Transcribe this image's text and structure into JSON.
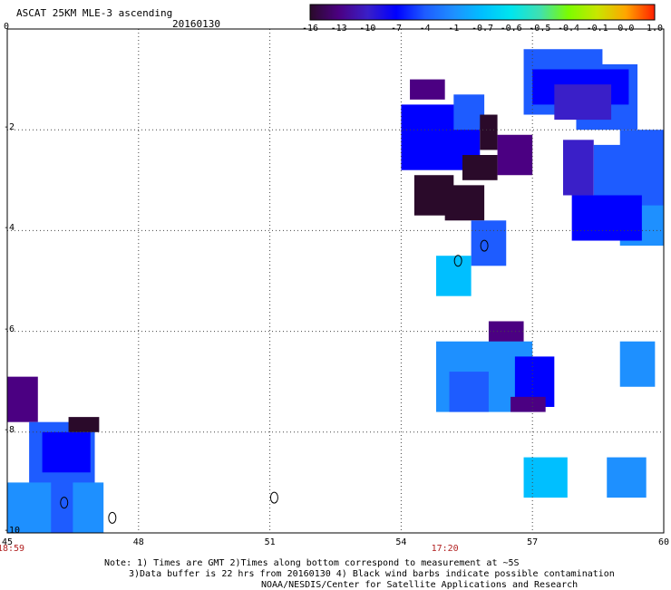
{
  "header": {
    "title": "ASCAT 25KM MLE-3 ascending",
    "date": "20160130"
  },
  "colorbar": {
    "labels": [
      "-16",
      "-13",
      "-10",
      "-7",
      "-4",
      "-1",
      "-0.7",
      "-0.6",
      "-0.5",
      "-0.4",
      "-0.1",
      "0.0",
      "1.0"
    ],
    "colors": [
      "#2a0a2a",
      "#4b0082",
      "#3a1fc8",
      "#0000ff",
      "#1e5cff",
      "#1e90ff",
      "#00bfff",
      "#00e5ee",
      "#40e0b0",
      "#7cfc00",
      "#c8e600",
      "#ffa500",
      "#ff2000"
    ]
  },
  "map": {
    "lon_range": [
      45,
      60
    ],
    "lat_range": [
      -10,
      0
    ],
    "x_ticks": [
      "45",
      "48",
      "51",
      "54",
      "57",
      "60"
    ],
    "y_ticks": [
      "0",
      "-2",
      "-4",
      "-6",
      "-8",
      "-10"
    ],
    "time_labels": [
      {
        "text": "18:59",
        "lon": 45
      },
      {
        "text": "17:20",
        "lon": 55
      }
    ]
  },
  "notes": {
    "line1": "Note: 1) Times are GMT 2)Times along bottom correspond to measurement at ~5S",
    "line2": "3)Data buffer is 22 hrs from 20160130 4) Black wind barbs indicate possible contamination",
    "line3": "NOAA/NESDIS/Center for Satellite Applications and Research"
  }
}
